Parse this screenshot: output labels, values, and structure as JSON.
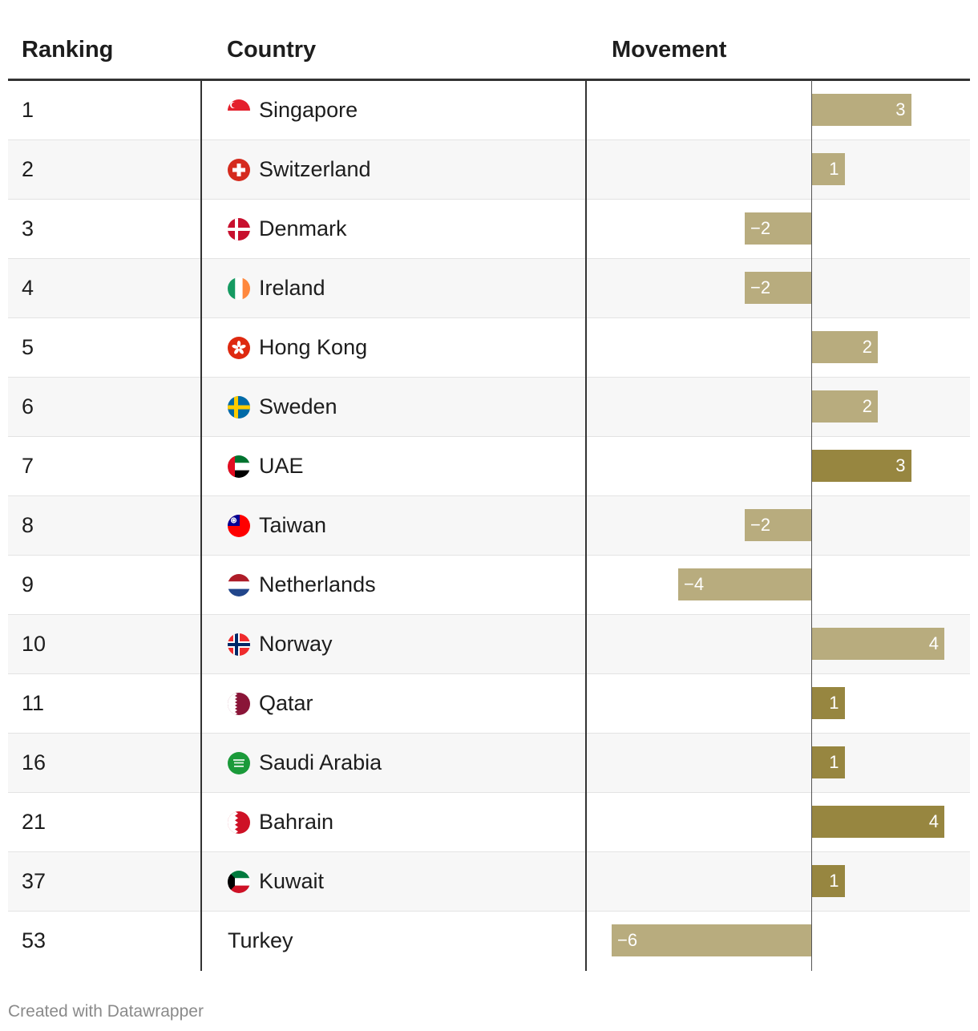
{
  "table": {
    "headers": {
      "ranking": "Ranking",
      "country": "Country",
      "movement": "Movement"
    }
  },
  "colors": {
    "light": "#b8ac7e",
    "dark": "#978640"
  },
  "chart_data": {
    "type": "table",
    "columns": [
      "Ranking",
      "Country",
      "Movement"
    ],
    "value_range": [
      -6,
      4
    ],
    "rows": [
      {
        "rank": "1",
        "country": "Singapore",
        "flag": "singapore-flag-icon",
        "movement": 3,
        "movement_label": "3",
        "highlight": false
      },
      {
        "rank": "2",
        "country": "Switzerland",
        "flag": "switzerland-flag-icon",
        "movement": 1,
        "movement_label": "1",
        "highlight": false
      },
      {
        "rank": "3",
        "country": "Denmark",
        "flag": "denmark-flag-icon",
        "movement": -2,
        "movement_label": "−2",
        "highlight": false
      },
      {
        "rank": "4",
        "country": "Ireland",
        "flag": "ireland-flag-icon",
        "movement": -2,
        "movement_label": "−2",
        "highlight": false
      },
      {
        "rank": "5",
        "country": "Hong Kong",
        "flag": "hong-kong-flag-icon",
        "movement": 2,
        "movement_label": "2",
        "highlight": false
      },
      {
        "rank": "6",
        "country": "Sweden",
        "flag": "sweden-flag-icon",
        "movement": 2,
        "movement_label": "2",
        "highlight": false
      },
      {
        "rank": "7",
        "country": "UAE",
        "flag": "uae-flag-icon",
        "movement": 3,
        "movement_label": "3",
        "highlight": true
      },
      {
        "rank": "8",
        "country": "Taiwan",
        "flag": "taiwan-flag-icon",
        "movement": -2,
        "movement_label": "−2",
        "highlight": false
      },
      {
        "rank": "9",
        "country": "Netherlands",
        "flag": "netherlands-flag-icon",
        "movement": -4,
        "movement_label": "−4",
        "highlight": false
      },
      {
        "rank": "10",
        "country": "Norway",
        "flag": "norway-flag-icon",
        "movement": 4,
        "movement_label": "4",
        "highlight": false
      },
      {
        "rank": "11",
        "country": "Qatar",
        "flag": "qatar-flag-icon",
        "movement": 1,
        "movement_label": "1",
        "highlight": true
      },
      {
        "rank": "16",
        "country": "Saudi Arabia",
        "flag": "saudi-arabia-flag-icon",
        "movement": 1,
        "movement_label": "1",
        "highlight": true
      },
      {
        "rank": "21",
        "country": "Bahrain",
        "flag": "bahrain-flag-icon",
        "movement": 4,
        "movement_label": "4",
        "highlight": true
      },
      {
        "rank": "37",
        "country": "Kuwait",
        "flag": "kuwait-flag-icon",
        "movement": 1,
        "movement_label": "1",
        "highlight": true
      },
      {
        "rank": "53",
        "country": "Turkey",
        "flag": "",
        "movement": -6,
        "movement_label": "−6",
        "highlight": false
      }
    ]
  },
  "footer": {
    "credit": "Created with Datawrapper"
  }
}
